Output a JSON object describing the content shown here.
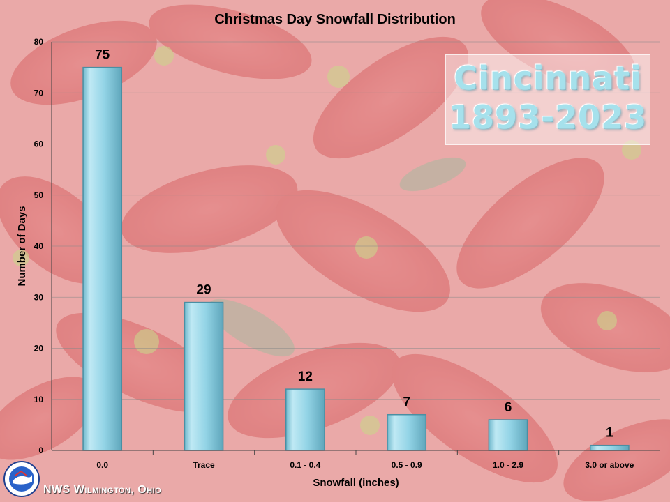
{
  "chart_data": {
    "type": "bar",
    "title": "Christmas Day Snowfall Distribution",
    "xlabel": "Snowfall (inches)",
    "ylabel": "Number of Days",
    "categories": [
      "0.0",
      "Trace",
      "0.1 - 0.4",
      "0.5 - 0.9",
      "1.0 - 2.9",
      "3.0 or above"
    ],
    "values": [
      75,
      29,
      12,
      7,
      6,
      1
    ],
    "data_labels": [
      "75",
      "29",
      "12",
      "7",
      "6",
      "1"
    ],
    "ylim": [
      0,
      80
    ],
    "yticks": [
      0,
      10,
      20,
      30,
      40,
      50,
      60,
      70,
      80
    ],
    "grid": true,
    "bar_color": "#8fd3e6"
  },
  "overlay": {
    "line1": "Cincinnati",
    "line2": "1893-2023"
  },
  "footer": {
    "credit": "NWS Wilmington, Ohio"
  },
  "colors": {
    "background": "#e9a6a6",
    "title": "#000000",
    "bar_edge": "#4a8fa3"
  }
}
